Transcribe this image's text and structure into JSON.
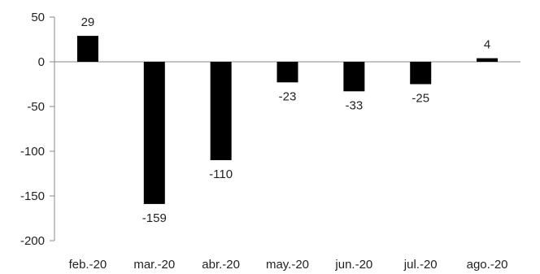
{
  "chart_data": {
    "type": "bar",
    "title": "",
    "xlabel": "",
    "ylabel": "",
    "categories": [
      "feb.-20",
      "mar.-20",
      "abr.-20",
      "may.-20",
      "jun.-20",
      "jul.-20",
      "ago.-20"
    ],
    "values": [
      29,
      -159,
      -110,
      -23,
      -33,
      -25,
      4
    ],
    "data_labels": [
      "29",
      "-159",
      "-110",
      "-23",
      "-33",
      "-25",
      "4"
    ],
    "ylim": [
      -200,
      50
    ],
    "yticks": [
      50,
      0,
      -50,
      -100,
      -150,
      -200
    ],
    "ytick_labels": [
      "50",
      "0",
      "-50",
      "-100",
      "-150",
      "-200"
    ],
    "grid": false,
    "legend": "none",
    "bar_color": "#000000",
    "axis_color": "#888888"
  }
}
